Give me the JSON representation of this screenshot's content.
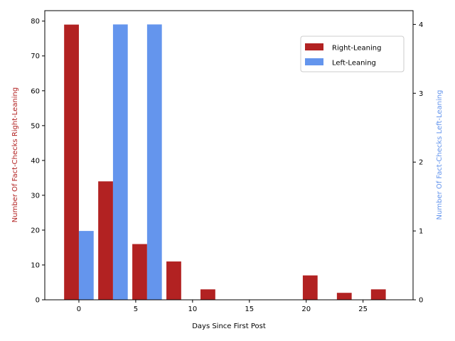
{
  "chart_data": {
    "type": "bar",
    "xlabel": "Days Since First Post",
    "ylabel_left": "Number Of Fact-Checks Right-Leaning",
    "ylabel_right": "Number Of Fact-Checks Left-Leaning",
    "xlim": [
      -3.0,
      29.4
    ],
    "ylim_left": [
      0,
      83
    ],
    "ylim_right": [
      0,
      4.2
    ],
    "xticks": [
      0,
      5,
      10,
      15,
      20,
      25
    ],
    "yticks_left": [
      0,
      10,
      20,
      30,
      40,
      50,
      60,
      70,
      80
    ],
    "yticks_right": [
      0,
      1,
      2,
      3,
      4
    ],
    "grid": false,
    "legend_position": "top-right",
    "series": [
      {
        "name": "Right-Leaning",
        "axis": "left",
        "color": "#b22222",
        "bar_width_days": 1.3,
        "points": [
          {
            "x": -0.65,
            "y": 79
          },
          {
            "x": 2.35,
            "y": 34
          },
          {
            "x": 5.35,
            "y": 16
          },
          {
            "x": 8.35,
            "y": 11
          },
          {
            "x": 11.35,
            "y": 3
          },
          {
            "x": 20.35,
            "y": 7
          },
          {
            "x": 23.35,
            "y": 2
          },
          {
            "x": 26.35,
            "y": 3
          }
        ]
      },
      {
        "name": "Left-Leaning",
        "axis": "right",
        "color": "#6495ed",
        "bar_width_days": 1.3,
        "points": [
          {
            "x": 0.65,
            "y": 1
          },
          {
            "x": 3.65,
            "y": 4
          },
          {
            "x": 6.65,
            "y": 4
          }
        ]
      }
    ]
  }
}
